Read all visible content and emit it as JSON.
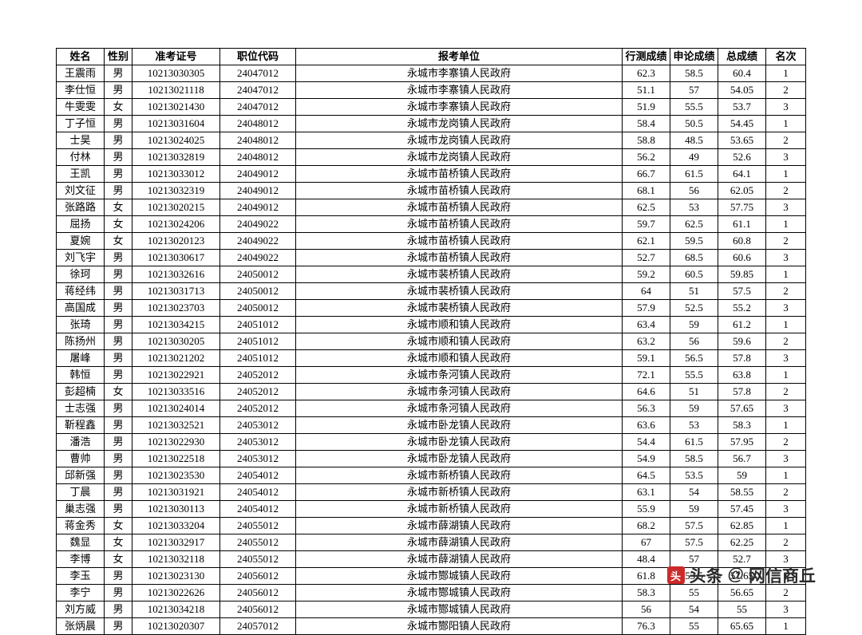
{
  "table": {
    "headers": {
      "name": "姓名",
      "gender": "性别",
      "exam_no": "准考证号",
      "position_code": "职位代码",
      "unit": "报考单位",
      "score1": "行测成绩",
      "score2": "申论成绩",
      "total": "总成绩",
      "rank": "名次"
    },
    "rows": [
      {
        "name": "王震雨",
        "gender": "男",
        "exam_no": "10213030305",
        "position_code": "24047012",
        "unit": "永城市李寨镇人民政府",
        "score1": "62.3",
        "score2": "58.5",
        "total": "60.4",
        "rank": "1"
      },
      {
        "name": "李仕恒",
        "gender": "男",
        "exam_no": "10213021118",
        "position_code": "24047012",
        "unit": "永城市李寨镇人民政府",
        "score1": "51.1",
        "score2": "57",
        "total": "54.05",
        "rank": "2"
      },
      {
        "name": "牛雯雯",
        "gender": "女",
        "exam_no": "10213021430",
        "position_code": "24047012",
        "unit": "永城市李寨镇人民政府",
        "score1": "51.9",
        "score2": "55.5",
        "total": "53.7",
        "rank": "3"
      },
      {
        "name": "丁子恒",
        "gender": "男",
        "exam_no": "10213031604",
        "position_code": "24048012",
        "unit": "永城市龙岗镇人民政府",
        "score1": "58.4",
        "score2": "50.5",
        "total": "54.45",
        "rank": "1"
      },
      {
        "name": "士昊",
        "gender": "男",
        "exam_no": "10213024025",
        "position_code": "24048012",
        "unit": "永城市龙岗镇人民政府",
        "score1": "58.8",
        "score2": "48.5",
        "total": "53.65",
        "rank": "2"
      },
      {
        "name": "付林",
        "gender": "男",
        "exam_no": "10213032819",
        "position_code": "24048012",
        "unit": "永城市龙岗镇人民政府",
        "score1": "56.2",
        "score2": "49",
        "total": "52.6",
        "rank": "3"
      },
      {
        "name": "王凯",
        "gender": "男",
        "exam_no": "10213033012",
        "position_code": "24049012",
        "unit": "永城市苗桥镇人民政府",
        "score1": "66.7",
        "score2": "61.5",
        "total": "64.1",
        "rank": "1"
      },
      {
        "name": "刘文征",
        "gender": "男",
        "exam_no": "10213032319",
        "position_code": "24049012",
        "unit": "永城市苗桥镇人民政府",
        "score1": "68.1",
        "score2": "56",
        "total": "62.05",
        "rank": "2"
      },
      {
        "name": "张路路",
        "gender": "女",
        "exam_no": "10213020215",
        "position_code": "24049012",
        "unit": "永城市苗桥镇人民政府",
        "score1": "62.5",
        "score2": "53",
        "total": "57.75",
        "rank": "3"
      },
      {
        "name": "屈扬",
        "gender": "女",
        "exam_no": "10213024206",
        "position_code": "24049022",
        "unit": "永城市苗桥镇人民政府",
        "score1": "59.7",
        "score2": "62.5",
        "total": "61.1",
        "rank": "1"
      },
      {
        "name": "夏婉",
        "gender": "女",
        "exam_no": "10213020123",
        "position_code": "24049022",
        "unit": "永城市苗桥镇人民政府",
        "score1": "62.1",
        "score2": "59.5",
        "total": "60.8",
        "rank": "2"
      },
      {
        "name": "刘飞宇",
        "gender": "男",
        "exam_no": "10213030617",
        "position_code": "24049022",
        "unit": "永城市苗桥镇人民政府",
        "score1": "52.7",
        "score2": "68.5",
        "total": "60.6",
        "rank": "3"
      },
      {
        "name": "徐珂",
        "gender": "男",
        "exam_no": "10213032616",
        "position_code": "24050012",
        "unit": "永城市裴桥镇人民政府",
        "score1": "59.2",
        "score2": "60.5",
        "total": "59.85",
        "rank": "1"
      },
      {
        "name": "蒋经纬",
        "gender": "男",
        "exam_no": "10213031713",
        "position_code": "24050012",
        "unit": "永城市裴桥镇人民政府",
        "score1": "64",
        "score2": "51",
        "total": "57.5",
        "rank": "2"
      },
      {
        "name": "高国成",
        "gender": "男",
        "exam_no": "10213023703",
        "position_code": "24050012",
        "unit": "永城市裴桥镇人民政府",
        "score1": "57.9",
        "score2": "52.5",
        "total": "55.2",
        "rank": "3"
      },
      {
        "name": "张琦",
        "gender": "男",
        "exam_no": "10213034215",
        "position_code": "24051012",
        "unit": "永城市顺和镇人民政府",
        "score1": "63.4",
        "score2": "59",
        "total": "61.2",
        "rank": "1"
      },
      {
        "name": "陈扬州",
        "gender": "男",
        "exam_no": "10213030205",
        "position_code": "24051012",
        "unit": "永城市顺和镇人民政府",
        "score1": "63.2",
        "score2": "56",
        "total": "59.6",
        "rank": "2"
      },
      {
        "name": "屠峰",
        "gender": "男",
        "exam_no": "10213021202",
        "position_code": "24051012",
        "unit": "永城市顺和镇人民政府",
        "score1": "59.1",
        "score2": "56.5",
        "total": "57.8",
        "rank": "3"
      },
      {
        "name": "韩恒",
        "gender": "男",
        "exam_no": "10213022921",
        "position_code": "24052012",
        "unit": "永城市条河镇人民政府",
        "score1": "72.1",
        "score2": "55.5",
        "total": "63.8",
        "rank": "1"
      },
      {
        "name": "彭超楠",
        "gender": "女",
        "exam_no": "10213033516",
        "position_code": "24052012",
        "unit": "永城市条河镇人民政府",
        "score1": "64.6",
        "score2": "51",
        "total": "57.8",
        "rank": "2"
      },
      {
        "name": "士志强",
        "gender": "男",
        "exam_no": "10213024014",
        "position_code": "24052012",
        "unit": "永城市条河镇人民政府",
        "score1": "56.3",
        "score2": "59",
        "total": "57.65",
        "rank": "3"
      },
      {
        "name": "靳程鑫",
        "gender": "男",
        "exam_no": "10213032521",
        "position_code": "24053012",
        "unit": "永城市卧龙镇人民政府",
        "score1": "63.6",
        "score2": "53",
        "total": "58.3",
        "rank": "1"
      },
      {
        "name": "潘浩",
        "gender": "男",
        "exam_no": "10213022930",
        "position_code": "24053012",
        "unit": "永城市卧龙镇人民政府",
        "score1": "54.4",
        "score2": "61.5",
        "total": "57.95",
        "rank": "2"
      },
      {
        "name": "曹帅",
        "gender": "男",
        "exam_no": "10213022518",
        "position_code": "24053012",
        "unit": "永城市卧龙镇人民政府",
        "score1": "54.9",
        "score2": "58.5",
        "total": "56.7",
        "rank": "3"
      },
      {
        "name": "邱新强",
        "gender": "男",
        "exam_no": "10213023530",
        "position_code": "24054012",
        "unit": "永城市新桥镇人民政府",
        "score1": "64.5",
        "score2": "53.5",
        "total": "59",
        "rank": "1"
      },
      {
        "name": "丁晨",
        "gender": "男",
        "exam_no": "10213031921",
        "position_code": "24054012",
        "unit": "永城市新桥镇人民政府",
        "score1": "63.1",
        "score2": "54",
        "total": "58.55",
        "rank": "2"
      },
      {
        "name": "巢志强",
        "gender": "男",
        "exam_no": "10213030113",
        "position_code": "24054012",
        "unit": "永城市新桥镇人民政府",
        "score1": "55.9",
        "score2": "59",
        "total": "57.45",
        "rank": "3"
      },
      {
        "name": "蒋金秀",
        "gender": "女",
        "exam_no": "10213033204",
        "position_code": "24055012",
        "unit": "永城市薛湖镇人民政府",
        "score1": "68.2",
        "score2": "57.5",
        "total": "62.85",
        "rank": "1"
      },
      {
        "name": "魏显",
        "gender": "女",
        "exam_no": "10213032917",
        "position_code": "24055012",
        "unit": "永城市薛湖镇人民政府",
        "score1": "67",
        "score2": "57.5",
        "total": "62.25",
        "rank": "2"
      },
      {
        "name": "李博",
        "gender": "女",
        "exam_no": "10213032118",
        "position_code": "24055012",
        "unit": "永城市薛湖镇人民政府",
        "score1": "48.4",
        "score2": "57",
        "total": "52.7",
        "rank": "3"
      },
      {
        "name": "李玉",
        "gender": "男",
        "exam_no": "10213023130",
        "position_code": "24056012",
        "unit": "永城市酂城镇人民政府",
        "score1": "61.8",
        "score2": "53.5",
        "total": "57.65",
        "rank": "1"
      },
      {
        "name": "李宁",
        "gender": "男",
        "exam_no": "10213022626",
        "position_code": "24056012",
        "unit": "永城市酂城镇人民政府",
        "score1": "58.3",
        "score2": "55",
        "total": "56.65",
        "rank": "2"
      },
      {
        "name": "刘方威",
        "gender": "男",
        "exam_no": "10213034218",
        "position_code": "24056012",
        "unit": "永城市酂城镇人民政府",
        "score1": "56",
        "score2": "54",
        "total": "55",
        "rank": "3"
      },
      {
        "name": "张炳晨",
        "gender": "男",
        "exam_no": "10213020307",
        "position_code": "24057012",
        "unit": "永城市酂阳镇人民政府",
        "score1": "76.3",
        "score2": "55",
        "total": "65.65",
        "rank": "1"
      }
    ]
  },
  "watermark": {
    "prefix": "头条",
    "at": "@",
    "name": "网信商丘",
    "icon_text": "头"
  },
  "style": {
    "border_color": "#000000",
    "bg_color": "#ffffff",
    "font_size_pt": 10,
    "header_weight": "bold"
  }
}
